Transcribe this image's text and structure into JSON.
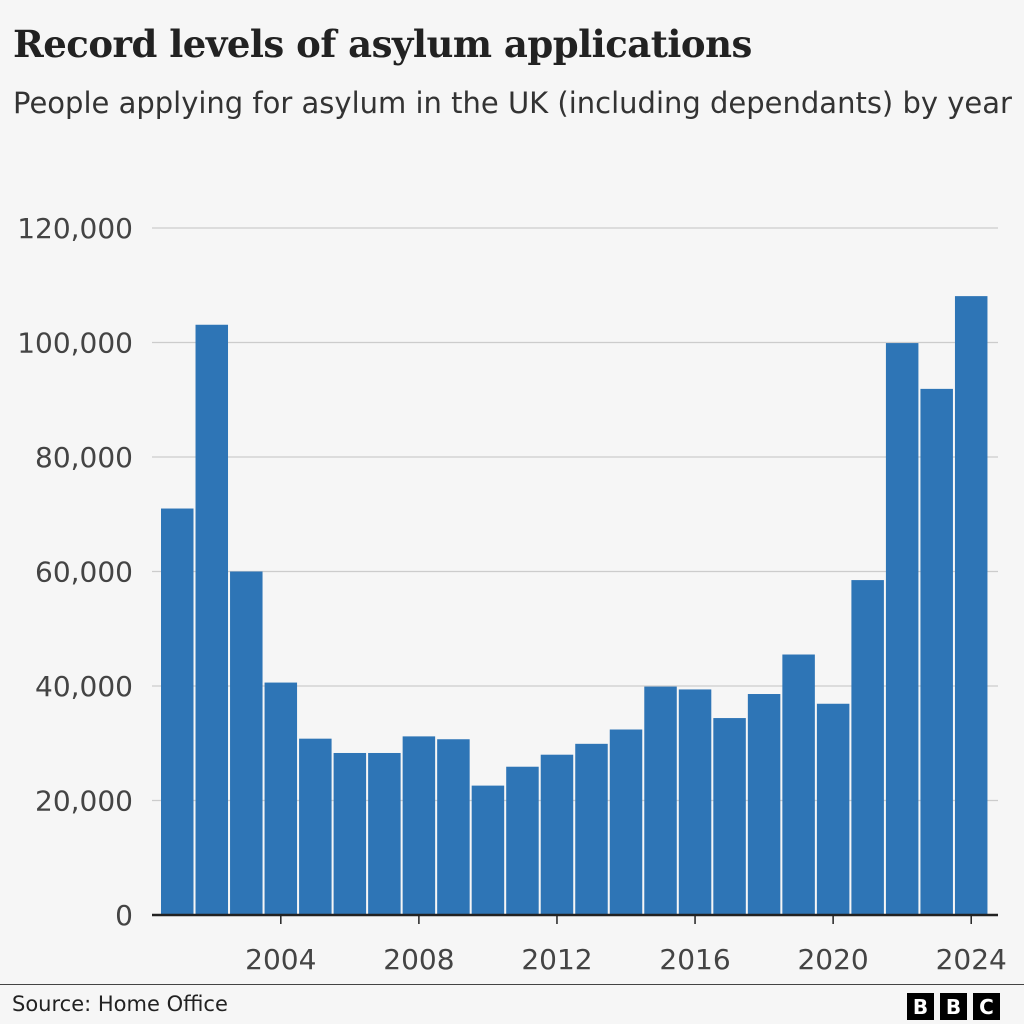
{
  "chart_data": {
    "type": "bar",
    "title": "Record levels of asylum applications",
    "subtitle": "People applying for asylum in the UK (including dependants) by year",
    "categories": [
      2001,
      2002,
      2003,
      2004,
      2005,
      2006,
      2007,
      2008,
      2009,
      2010,
      2011,
      2012,
      2013,
      2014,
      2015,
      2016,
      2017,
      2018,
      2019,
      2020,
      2021,
      2022,
      2023,
      2024
    ],
    "values": [
      71000,
      103100,
      60000,
      40600,
      30800,
      28300,
      28300,
      31200,
      30700,
      22600,
      25900,
      28000,
      29900,
      32400,
      39900,
      39400,
      34400,
      38600,
      45500,
      36900,
      58500,
      99900,
      91900,
      108100
    ],
    "ylim": [
      0,
      120000
    ],
    "yticks": [
      0,
      20000,
      40000,
      60000,
      80000,
      100000,
      120000
    ],
    "ytick_labels": [
      "0",
      "20,000",
      "40,000",
      "60,000",
      "80,000",
      "100,000",
      "120,000"
    ],
    "xtick_labels": [
      "2004",
      "2008",
      "2012",
      "2016",
      "2020",
      "2024"
    ],
    "grid": true,
    "bar_color": "#2e75b6"
  },
  "footer": {
    "source": "Source: Home Office",
    "logo": [
      "B",
      "B",
      "C"
    ]
  }
}
